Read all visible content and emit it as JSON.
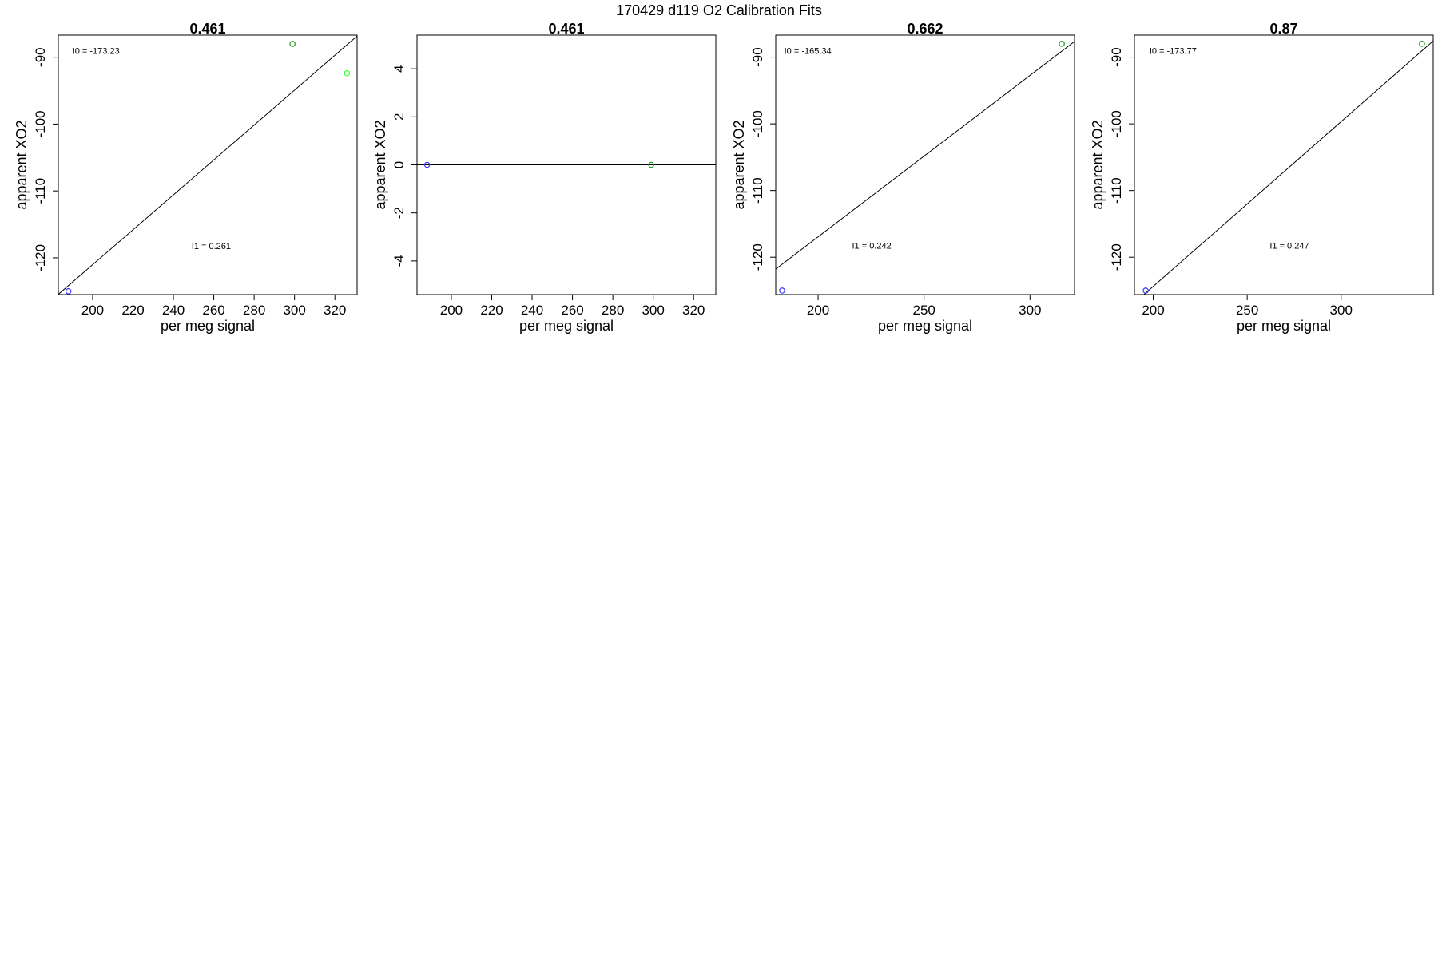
{
  "page_title": "170429   d119   O2 Calibration Fits",
  "colors": {
    "axis": "#000000",
    "fit_line": "#000000",
    "point_blue": "#3b3bff",
    "point_darkgreen": "#1f9a1f",
    "point_lightgreen": "#33ff33"
  },
  "chart_data": [
    {
      "type": "scatter",
      "title": "0.461",
      "xlabel": "per meg signal",
      "ylabel": "apparent XO2",
      "xlim": [
        183,
        331
      ],
      "ylim": [
        -125.5,
        -86.7
      ],
      "xticks": [
        200,
        220,
        240,
        260,
        280,
        300,
        320
      ],
      "yticks": [
        -90,
        -100,
        -110,
        -120
      ],
      "points": [
        {
          "x": 188,
          "y": -125,
          "color": "blue"
        },
        {
          "x": 299,
          "y": -88.0,
          "color": "darkgreen"
        },
        {
          "x": 326,
          "y": -92.4,
          "color": "lightgreen"
        }
      ],
      "fit_line": {
        "intercept": -173.23,
        "slope": 0.261
      },
      "annotations": [
        {
          "text": "I0 =  -173.23",
          "x": 190,
          "y": -89.5
        },
        {
          "text": "I1 =  0.261",
          "x": 249,
          "y": -118.7
        }
      ]
    },
    {
      "type": "scatter",
      "title": "0.461",
      "xlabel": "per meg signal",
      "ylabel": "apparent XO2",
      "xlim": [
        183,
        331
      ],
      "ylim": [
        -5.4,
        5.4
      ],
      "xticks": [
        200,
        220,
        240,
        260,
        280,
        300,
        320
      ],
      "yticks": [
        4,
        2,
        0,
        -2,
        -4
      ],
      "points": [
        {
          "x": 188,
          "y": 0,
          "color": "blue"
        },
        {
          "x": 299,
          "y": 0,
          "color": "darkgreen"
        }
      ],
      "fit_line": {
        "intercept": 0,
        "slope": 0
      },
      "annotations": []
    },
    {
      "type": "scatter",
      "title": "0.662",
      "xlabel": "per meg signal",
      "ylabel": "apparent XO2",
      "xlim": [
        180,
        321
      ],
      "ylim": [
        -125.6,
        -86.7
      ],
      "xticks": [
        200,
        250,
        300
      ],
      "yticks": [
        -90,
        -100,
        -110,
        -120
      ],
      "points": [
        {
          "x": 183,
          "y": -125,
          "color": "blue"
        },
        {
          "x": 315,
          "y": -88.0,
          "color": "darkgreen"
        }
      ],
      "fit_line": {
        "intercept": -165.34,
        "slope": 0.242
      },
      "annotations": [
        {
          "text": "I0 =  -165.34",
          "x": 184,
          "y": -89.5
        },
        {
          "text": "I1 =  0.242",
          "x": 216,
          "y": -118.7
        }
      ]
    },
    {
      "type": "scatter",
      "title": "0.87",
      "xlabel": "per meg signal",
      "ylabel": "apparent XO2",
      "xlim": [
        190,
        349
      ],
      "ylim": [
        -125.6,
        -86.7
      ],
      "xticks": [
        200,
        250,
        300
      ],
      "yticks": [
        -90,
        -100,
        -110,
        -120
      ],
      "points": [
        {
          "x": 196,
          "y": -125,
          "color": "blue"
        },
        {
          "x": 343,
          "y": -88.0,
          "color": "darkgreen"
        }
      ],
      "fit_line": {
        "intercept": -173.77,
        "slope": 0.247
      },
      "annotations": [
        {
          "text": "I0 =  -173.77",
          "x": 198,
          "y": -89.5
        },
        {
          "text": "I1 =  0.247",
          "x": 262,
          "y": -118.7
        }
      ]
    }
  ]
}
